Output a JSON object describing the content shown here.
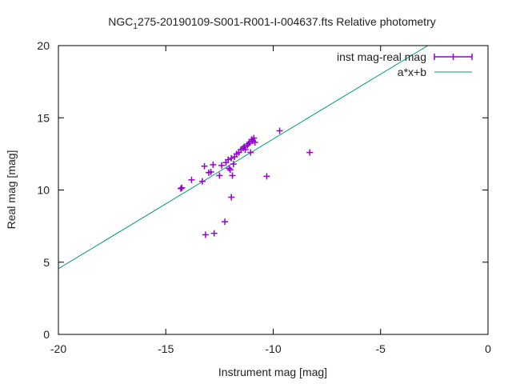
{
  "chart_data": {
    "type": "scatter",
    "title": {
      "prefix": "NGC",
      "subscript": "1",
      "suffix": "275-20190109-S001-R001-I-004637.fts Relative photometry"
    },
    "xlabel": "Instrument mag [mag]",
    "ylabel": "Real mag [mag]",
    "xlim": [
      -20,
      0
    ],
    "ylim": [
      0,
      20
    ],
    "xticks": [
      {
        "value": -20,
        "label": "-20"
      },
      {
        "value": -15,
        "label": "-15"
      },
      {
        "value": -10,
        "label": "-10"
      },
      {
        "value": -5,
        "label": "-5"
      },
      {
        "value": 0,
        "label": "0"
      }
    ],
    "yticks": [
      {
        "value": 0,
        "label": "0"
      },
      {
        "value": 5,
        "label": "5"
      },
      {
        "value": 10,
        "label": "10"
      },
      {
        "value": 15,
        "label": "15"
      },
      {
        "value": 20,
        "label": "20"
      }
    ],
    "grid": false,
    "legend": "top-right",
    "series": [
      {
        "name": "inst mag-real mag",
        "kind": "points",
        "color": "#9400d3",
        "points": [
          [
            -14.3,
            10.1
          ],
          [
            -14.25,
            10.15
          ],
          [
            -13.8,
            10.7
          ],
          [
            -13.3,
            10.6
          ],
          [
            -13.2,
            11.65
          ],
          [
            -13.0,
            11.2
          ],
          [
            -12.9,
            11.25
          ],
          [
            -12.8,
            11.75
          ],
          [
            -12.5,
            11.0
          ],
          [
            -12.4,
            11.7
          ],
          [
            -12.2,
            11.9
          ],
          [
            -12.1,
            12.1
          ],
          [
            -12.05,
            11.5
          ],
          [
            -12.0,
            11.4
          ],
          [
            -11.95,
            12.2
          ],
          [
            -11.9,
            11.0
          ],
          [
            -11.85,
            11.8
          ],
          [
            -11.8,
            12.3
          ],
          [
            -11.7,
            12.5
          ],
          [
            -11.6,
            12.6
          ],
          [
            -11.5,
            12.8
          ],
          [
            -11.4,
            12.9
          ],
          [
            -11.35,
            13.0
          ],
          [
            -11.3,
            12.8
          ],
          [
            -11.2,
            13.1
          ],
          [
            -11.15,
            13.2
          ],
          [
            -11.1,
            13.3
          ],
          [
            -11.05,
            12.6
          ],
          [
            -11.0,
            13.5
          ],
          [
            -10.95,
            13.4
          ],
          [
            -10.9,
            13.6
          ],
          [
            -10.85,
            13.3
          ],
          [
            -10.3,
            10.95
          ],
          [
            -9.7,
            14.1
          ],
          [
            -8.3,
            12.6
          ],
          [
            -12.25,
            7.8
          ],
          [
            -11.95,
            9.5
          ],
          [
            -12.75,
            7.0
          ],
          [
            -13.15,
            6.9
          ]
        ]
      },
      {
        "name": "a*x+b",
        "kind": "line",
        "color": "#00987a",
        "x": [
          -20,
          -2.8
        ],
        "y": [
          4.55,
          20
        ]
      }
    ]
  }
}
